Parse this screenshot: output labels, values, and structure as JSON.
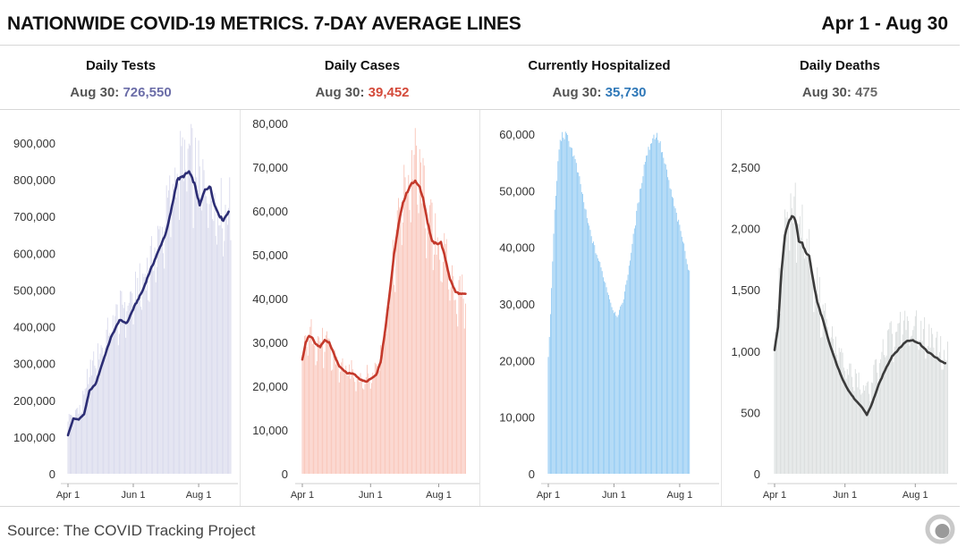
{
  "header": {
    "title": "NATIONWIDE COVID-19 METRICS. 7-DAY AVERAGE LINES",
    "date_range": "Apr 1 - Aug 30"
  },
  "footer": {
    "source": "Source: The COVID Tracking Project"
  },
  "chart_data": [
    {
      "type": "bar",
      "title": "Daily Tests",
      "latest": {
        "label": "Aug 30:",
        "value": "726,550"
      },
      "bar_color": "#d6d7eb",
      "line_color": "#2c2d74",
      "value_color": "#6b6da8",
      "ylim": [
        0,
        1000000
      ],
      "yticks": [
        0,
        100000,
        200000,
        300000,
        400000,
        500000,
        600000,
        700000,
        800000,
        900000
      ],
      "ytick_labels": [
        "0",
        "100,000",
        "200,000",
        "300,000",
        "400,000",
        "500,000",
        "600,000",
        "700,000",
        "800,000",
        "900,000"
      ],
      "xlim": [
        0,
        152
      ],
      "xticks": [
        0,
        61,
        122
      ],
      "xtick_labels": [
        "Apr 1",
        "Jun 1",
        "Aug 1"
      ],
      "line_knots": [
        [
          0,
          105000
        ],
        [
          5,
          150000
        ],
        [
          10,
          148000
        ],
        [
          15,
          162000
        ],
        [
          20,
          225000
        ],
        [
          26,
          245000
        ],
        [
          32,
          300000
        ],
        [
          40,
          370000
        ],
        [
          48,
          418000
        ],
        [
          55,
          410000
        ],
        [
          62,
          455000
        ],
        [
          70,
          500000
        ],
        [
          75,
          540000
        ],
        [
          85,
          610000
        ],
        [
          92,
          660000
        ],
        [
          97,
          725000
        ],
        [
          102,
          800000
        ],
        [
          108,
          810000
        ],
        [
          113,
          822000
        ],
        [
          118,
          790000
        ],
        [
          123,
          730000
        ],
        [
          128,
          775000
        ],
        [
          133,
          780000
        ],
        [
          137,
          730000
        ],
        [
          142,
          700000
        ],
        [
          145,
          690000
        ],
        [
          150,
          714000
        ]
      ],
      "bar_knots": [
        [
          0,
          155000
        ],
        [
          5,
          172000
        ],
        [
          12,
          190000
        ],
        [
          20,
          290000
        ],
        [
          30,
          345000
        ],
        [
          40,
          418000
        ],
        [
          50,
          468000
        ],
        [
          60,
          500000
        ],
        [
          70,
          545000
        ],
        [
          80,
          615000
        ],
        [
          90,
          710000
        ],
        [
          97,
          800000
        ],
        [
          103,
          870000
        ],
        [
          110,
          900000
        ],
        [
          116,
          885000
        ],
        [
          122,
          840000
        ],
        [
          130,
          820000
        ],
        [
          138,
          765000
        ],
        [
          145,
          745000
        ],
        [
          152,
          760000
        ]
      ]
    },
    {
      "type": "bar",
      "title": "Daily Cases",
      "latest": {
        "label": "Aug 30:",
        "value": "39,452"
      },
      "bar_color": "#f9c2b6",
      "line_color": "#c4392b",
      "value_color": "#d44a3a",
      "ylim": [
        0,
        85000
      ],
      "yticks": [
        0,
        10000,
        20000,
        30000,
        40000,
        50000,
        60000,
        70000,
        80000
      ],
      "ytick_labels": [
        "0",
        "10,000",
        "20,000",
        "30,000",
        "40,000",
        "50,000",
        "60,000",
        "70,000",
        "80,000"
      ],
      "xlim": [
        0,
        152
      ],
      "xticks": [
        0,
        61,
        122
      ],
      "xtick_labels": [
        "Apr 1",
        "Jun 1",
        "Aug 1"
      ],
      "line_knots": [
        [
          0,
          26000
        ],
        [
          3,
          30000
        ],
        [
          6,
          31500
        ],
        [
          9,
          31000
        ],
        [
          12,
          29500
        ],
        [
          16,
          29000
        ],
        [
          20,
          30500
        ],
        [
          24,
          30000
        ],
        [
          28,
          27500
        ],
        [
          33,
          24500
        ],
        [
          40,
          23000
        ],
        [
          46,
          22800
        ],
        [
          52,
          21500
        ],
        [
          57,
          21000
        ],
        [
          62,
          21800
        ],
        [
          66,
          22500
        ],
        [
          70,
          25500
        ],
        [
          74,
          32500
        ],
        [
          78,
          41000
        ],
        [
          82,
          50000
        ],
        [
          86,
          57000
        ],
        [
          90,
          62000
        ],
        [
          94,
          64500
        ],
        [
          98,
          66500
        ],
        [
          101,
          66700
        ],
        [
          104,
          66000
        ],
        [
          108,
          63000
        ],
        [
          112,
          57500
        ],
        [
          116,
          53000
        ],
        [
          120,
          52500
        ],
        [
          124,
          52800
        ],
        [
          128,
          49000
        ],
        [
          132,
          44500
        ],
        [
          137,
          41500
        ],
        [
          142,
          41000
        ],
        [
          146,
          41000
        ]
      ],
      "bar_knots": [
        [
          0,
          27000
        ],
        [
          5,
          33500
        ],
        [
          10,
          33000
        ],
        [
          15,
          31500
        ],
        [
          20,
          31000
        ],
        [
          25,
          29000
        ],
        [
          30,
          27000
        ],
        [
          40,
          24500
        ],
        [
          50,
          23500
        ],
        [
          60,
          23000
        ],
        [
          66,
          25000
        ],
        [
          72,
          33000
        ],
        [
          78,
          43000
        ],
        [
          84,
          56000
        ],
        [
          90,
          66000
        ],
        [
          96,
          71000
        ],
        [
          101,
          74000
        ],
        [
          106,
          70000
        ],
        [
          112,
          62000
        ],
        [
          118,
          56000
        ],
        [
          124,
          54000
        ],
        [
          130,
          49000
        ],
        [
          136,
          44000
        ],
        [
          142,
          43000
        ],
        [
          146,
          42000
        ]
      ]
    },
    {
      "type": "bar",
      "title": "Currently Hospitalized",
      "latest": {
        "label": "Aug 30:",
        "value": "35,730"
      },
      "bar_color": "#8cc7f2",
      "line_color": "",
      "value_color": "#2f78b8",
      "ylim": [
        0,
        62000
      ],
      "yticks": [
        0,
        10000,
        20000,
        30000,
        40000,
        50000,
        60000
      ],
      "ytick_labels": [
        "0",
        "10,000",
        "20,000",
        "30,000",
        "40,000",
        "50,000",
        "60,000"
      ],
      "xlim": [
        0,
        152
      ],
      "xticks": [
        0,
        61,
        122
      ],
      "xtick_labels": [
        "Apr 1",
        "Jun 1",
        "Aug 1"
      ],
      "line_knots": [],
      "bar_knots": [
        [
          0,
          20500
        ],
        [
          2,
          28000
        ],
        [
          4,
          38000
        ],
        [
          6,
          46000
        ],
        [
          8,
          52000
        ],
        [
          10,
          57500
        ],
        [
          12,
          59500
        ],
        [
          14,
          59800
        ],
        [
          17,
          59500
        ],
        [
          20,
          58500
        ],
        [
          24,
          56000
        ],
        [
          30,
          51000
        ],
        [
          36,
          45000
        ],
        [
          42,
          40500
        ],
        [
          48,
          37000
        ],
        [
          54,
          33000
        ],
        [
          60,
          29000
        ],
        [
          64,
          28000
        ],
        [
          68,
          29500
        ],
        [
          72,
          33000
        ],
        [
          78,
          40500
        ],
        [
          84,
          48500
        ],
        [
          90,
          55500
        ],
        [
          96,
          59000
        ],
        [
          99,
          59800
        ],
        [
          102,
          59500
        ],
        [
          106,
          56500
        ],
        [
          112,
          51500
        ],
        [
          118,
          46500
        ],
        [
          124,
          42000
        ],
        [
          128,
          38500
        ],
        [
          130,
          36300
        ],
        [
          131,
          35730
        ]
      ]
    },
    {
      "type": "bar",
      "title": "Daily Deaths",
      "latest": {
        "label": "Aug 30:",
        "value": "475"
      },
      "bar_color": "#d8dcdc",
      "line_color": "#3b3b3b",
      "value_color": "#6a6a6a",
      "ylim": [
        0,
        2750
      ],
      "yticks": [
        0,
        500,
        1000,
        1500,
        2000,
        2500
      ],
      "ytick_labels": [
        "0",
        "500",
        "1,000",
        "1,500",
        "2,000",
        "2,500"
      ],
      "xlim": [
        0,
        152
      ],
      "xticks": [
        0,
        61,
        122
      ],
      "xtick_labels": [
        "Apr 1",
        "Jun 1",
        "Aug 1"
      ],
      "line_knots": [
        [
          0,
          1010
        ],
        [
          3,
          1200
        ],
        [
          6,
          1650
        ],
        [
          9,
          1950
        ],
        [
          12,
          2050
        ],
        [
          15,
          2100
        ],
        [
          18,
          2070
        ],
        [
          21,
          1900
        ],
        [
          24,
          1880
        ],
        [
          27,
          1800
        ],
        [
          30,
          1780
        ],
        [
          33,
          1600
        ],
        [
          37,
          1400
        ],
        [
          42,
          1250
        ],
        [
          47,
          1080
        ],
        [
          52,
          940
        ],
        [
          58,
          790
        ],
        [
          64,
          680
        ],
        [
          70,
          600
        ],
        [
          76,
          540
        ],
        [
          80,
          480
        ],
        [
          84,
          560
        ],
        [
          90,
          720
        ],
        [
          96,
          850
        ],
        [
          102,
          960
        ],
        [
          108,
          1020
        ],
        [
          114,
          1080
        ],
        [
          120,
          1090
        ],
        [
          126,
          1060
        ],
        [
          132,
          1000
        ],
        [
          138,
          960
        ],
        [
          144,
          920
        ],
        [
          148,
          900
        ]
      ],
      "bar_knots": [
        [
          0,
          1000
        ],
        [
          5,
          1700
        ],
        [
          10,
          2200
        ],
        [
          15,
          2350
        ],
        [
          20,
          2200
        ],
        [
          25,
          2050
        ],
        [
          30,
          1900
        ],
        [
          40,
          1450
        ],
        [
          50,
          1150
        ],
        [
          60,
          950
        ],
        [
          70,
          800
        ],
        [
          80,
          700
        ],
        [
          90,
          950
        ],
        [
          100,
          1150
        ],
        [
          110,
          1250
        ],
        [
          120,
          1250
        ],
        [
          130,
          1200
        ],
        [
          140,
          1100
        ],
        [
          150,
          1000
        ]
      ]
    }
  ]
}
